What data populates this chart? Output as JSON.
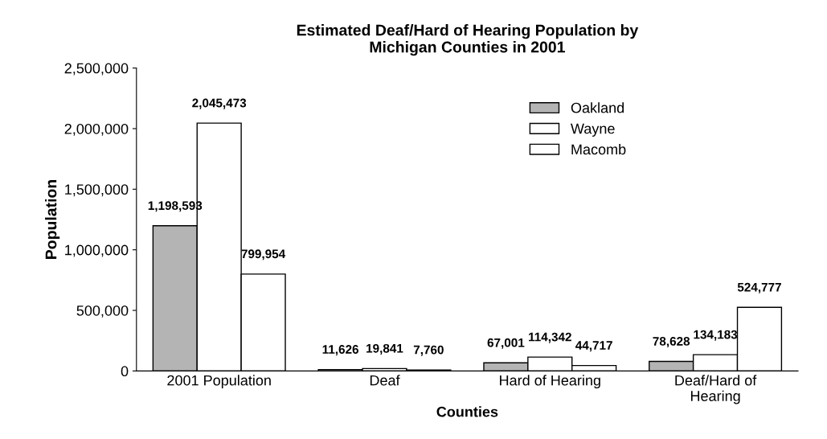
{
  "chart_data": {
    "type": "bar",
    "title": "Estimated Deaf/Hard of Hearing Population by\nMichigan Counties in 2001",
    "xlabel": "Counties",
    "ylabel": "Population",
    "categories": [
      "2001 Population",
      "Deaf",
      "Hard of Hearing",
      "Deaf/Hard of\nHearing"
    ],
    "series": [
      {
        "name": "Oakland",
        "color": "#b4b4b4",
        "values": [
          1198593,
          11626,
          67001,
          78628
        ],
        "value_labels": [
          "1,198,593",
          "11,626",
          "67,001",
          "78,628"
        ]
      },
      {
        "name": "Wayne",
        "color": "#ffffff",
        "values": [
          2045473,
          19841,
          114342,
          134183
        ],
        "value_labels": [
          "2,045,473",
          "19,841",
          "114,342",
          "134,183"
        ]
      },
      {
        "name": "Macomb",
        "color": "#ffffff",
        "values": [
          799954,
          7760,
          44717,
          524777
        ],
        "value_labels": [
          "799,954",
          "7,760",
          "44,717",
          "524,777"
        ]
      }
    ],
    "ylim": [
      0,
      2500000
    ],
    "yticks": [
      {
        "value": 0,
        "label": "0"
      },
      {
        "value": 500000,
        "label": "500,000"
      },
      {
        "value": 1000000,
        "label": "1,000,000"
      },
      {
        "value": 1500000,
        "label": "1,500,000"
      },
      {
        "value": 2000000,
        "label": "2,000,000"
      },
      {
        "value": 2500000,
        "label": "2,500,000"
      }
    ],
    "grid": false,
    "legend": "top right"
  }
}
